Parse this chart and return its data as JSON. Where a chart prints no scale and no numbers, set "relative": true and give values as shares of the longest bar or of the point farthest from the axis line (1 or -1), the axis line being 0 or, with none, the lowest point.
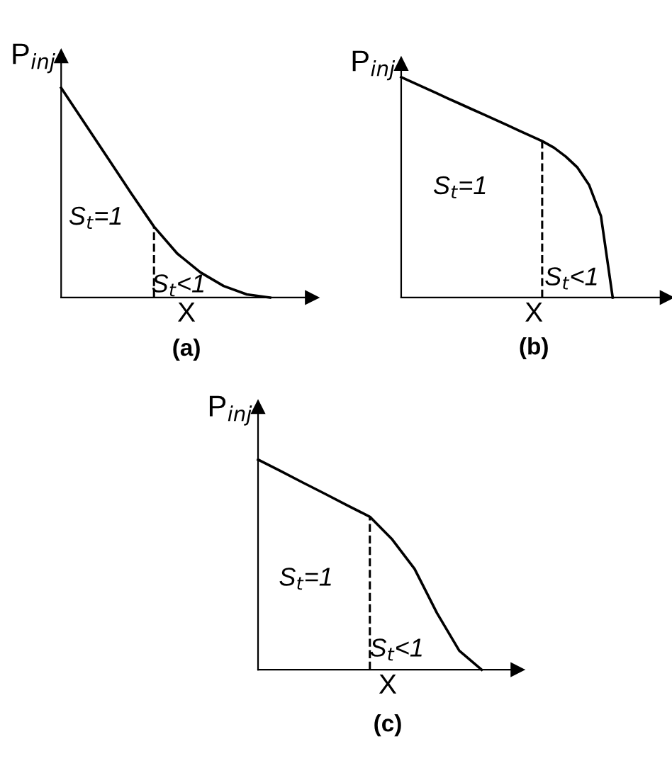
{
  "chart_data": [
    {
      "type": "line",
      "title": "(a)",
      "xlabel": "X",
      "ylabel": "P$_{inj}$",
      "relative": true,
      "tick_labels": false,
      "marker": "none",
      "categories": [
        null,
        null,
        null,
        null,
        null,
        null,
        null,
        null,
        null,
        null
      ],
      "series": [
        {
          "color": "#000000",
          "line_style": "solid",
          "values": [
            1,
            0.833,
            0.667,
            0.5,
            0.338,
            0.21,
            0.12,
            0.055,
            0.015,
            0
          ]
        }
      ],
      "annotations": [
        "S$_{t}$=1",
        "S$_{t}$<1"
      ]
    },
    {
      "type": "line",
      "title": "(b)",
      "xlabel": "X",
      "ylabel": "P$_{inj}$",
      "relative": true,
      "tick_labels": false,
      "marker": "none",
      "categories": [
        null,
        null,
        null,
        null,
        null,
        null,
        null,
        null,
        null,
        null,
        null,
        null,
        null,
        null,
        null,
        null,
        null,
        null,
        null
      ],
      "series": [
        {
          "color": "#000000",
          "line_style": "solid",
          "values": [
            1,
            0.976,
            0.952,
            0.928,
            0.903,
            0.879,
            0.855,
            0.831,
            0.807,
            0.783,
            0.758,
            0.734,
            0.71,
            0.68,
            0.64,
            0.59,
            0.51,
            0.37,
            0
          ]
        }
      ],
      "annotations": [
        "S$_{t}$=1",
        "S$_{t}$<1"
      ]
    },
    {
      "type": "line",
      "title": "(c)",
      "xlabel": "X",
      "ylabel": "P$_{inj}$",
      "relative": true,
      "tick_labels": false,
      "marker": "none",
      "categories": [
        null,
        null,
        null,
        null,
        null,
        null,
        null,
        null,
        null,
        null,
        null
      ],
      "series": [
        {
          "color": "#000000",
          "line_style": "solid",
          "values": [
            1,
            0.946,
            0.891,
            0.837,
            0.782,
            0.728,
            0.62,
            0.48,
            0.27,
            0.09,
            0
          ]
        }
      ],
      "annotations": [
        "S$_{t}$=1",
        "S$_{t}$<1"
      ]
    }
  ]
}
